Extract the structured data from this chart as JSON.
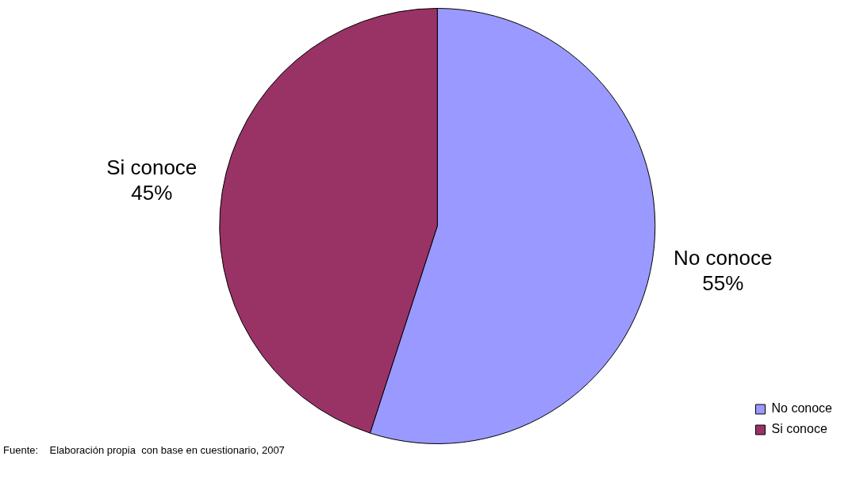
{
  "chart_data": {
    "type": "pie",
    "categories": [
      "No conoce",
      "Si conoce"
    ],
    "values": [
      55,
      45
    ],
    "colors": [
      "#9999ff",
      "#993366"
    ],
    "value_labels": [
      "55%",
      "45%"
    ],
    "legend": "bottom right",
    "annotations": [
      "Fuente:    Elaboración propia  con base en cuestionario, 2007"
    ]
  }
}
